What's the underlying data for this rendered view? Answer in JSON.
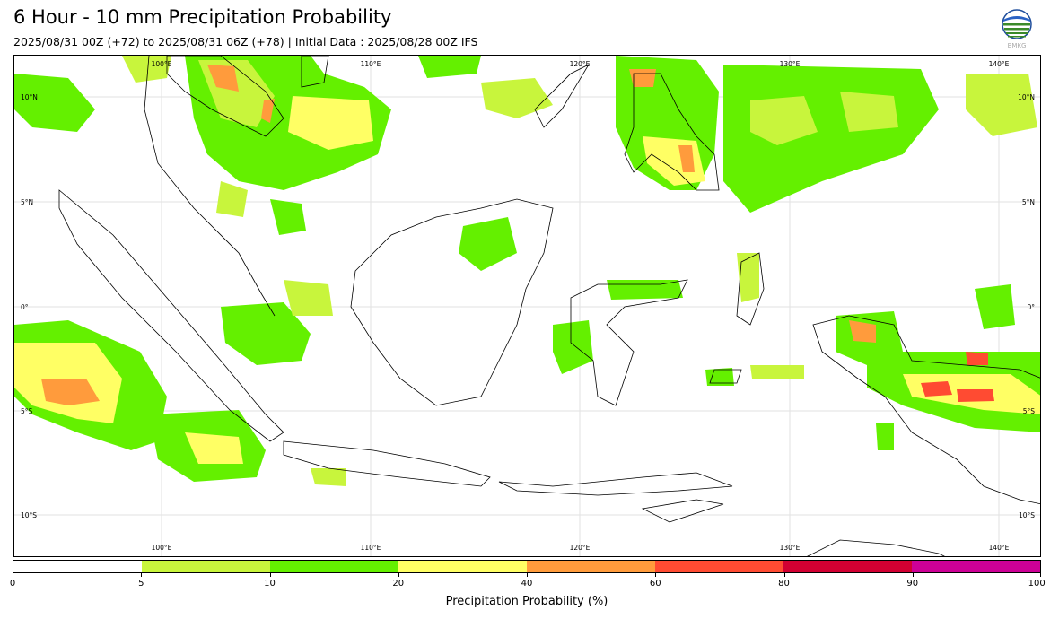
{
  "title": "6 Hour - 10 mm Precipitation Probability",
  "subtitle": "2025/08/31 00Z (+72) to 2025/08/31 06Z (+78) | Initial Data : 2025/08/28 00Z IFS",
  "logo": {
    "icon": "bmkg-logo",
    "text": "BMKG"
  },
  "map": {
    "lon_labels": [
      "100°E",
      "110°E",
      "120°E",
      "130°E",
      "140°E"
    ],
    "lat_labels": [
      "10°N",
      "5°N",
      "0°",
      "5°S",
      "10°S"
    ]
  },
  "colorbar": {
    "title": "Precipitation Probability (%)",
    "ticks": [
      "0",
      "5",
      "10",
      "20",
      "40",
      "60",
      "80",
      "90",
      "100"
    ],
    "colors": [
      "#ffffff",
      "#c8f53c",
      "#64f000",
      "#ffff64",
      "#ff9b3c",
      "#ff4b32",
      "#d20032",
      "#cd0096"
    ]
  }
}
